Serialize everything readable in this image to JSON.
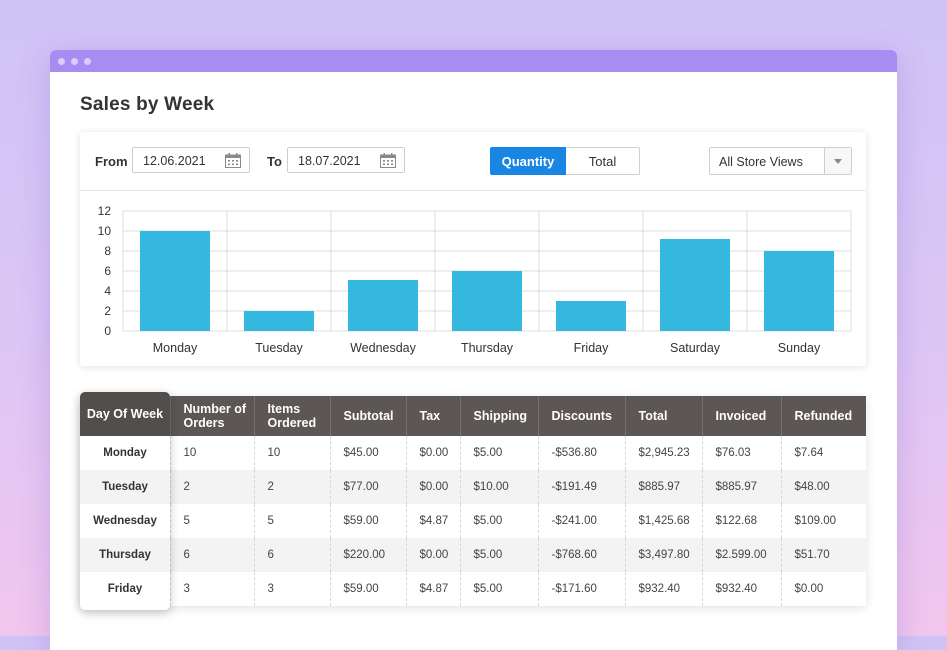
{
  "page": {
    "title": "Sales by Week"
  },
  "filters": {
    "from_label": "From",
    "from_value": "12.06.2021",
    "to_label": "To",
    "to_value": "18.07.2021",
    "toggle": {
      "active": "Quantity",
      "inactive": "Total"
    },
    "store_select": "All Store Views"
  },
  "chart_data": {
    "type": "bar",
    "categories": [
      "Monday",
      "Tuesday",
      "Wednesday",
      "Thursday",
      "Friday",
      "Saturday",
      "Sunday"
    ],
    "values": [
      10,
      2,
      5.1,
      6,
      3,
      9.2,
      8
    ],
    "yticks": [
      "0",
      "2",
      "4",
      "6",
      "8",
      "10",
      "12"
    ],
    "ylim": [
      0,
      12
    ],
    "grid": true,
    "color": "#35b8e0"
  },
  "table": {
    "day_header": "Day Of Week",
    "headers": [
      "Number of Orders",
      "Items Ordered",
      "Subtotal",
      "Tax",
      "Shipping",
      "Discounts",
      "Total",
      "Invoiced",
      "Refunded"
    ],
    "rows": [
      {
        "day": "Monday",
        "cells": [
          "10",
          "10",
          "$45.00",
          "$0.00",
          "$5.00",
          "-$536.80",
          "$2,945.23",
          "$76.03",
          "$7.64"
        ]
      },
      {
        "day": "Tuesday",
        "cells": [
          "2",
          "2",
          "$77.00",
          "$0.00",
          "$10.00",
          "-$191.49",
          "$885.97",
          "$885.97",
          "$48.00"
        ]
      },
      {
        "day": "Wednesday",
        "cells": [
          "5",
          "5",
          "$59.00",
          "$4.87",
          "$5.00",
          "-$241.00",
          "$1,425.68",
          "$122.68",
          "$109.00"
        ]
      },
      {
        "day": "Thursday",
        "cells": [
          "6",
          "6",
          "$220.00",
          "$0.00",
          "$5.00",
          "-$768.60",
          "$3,497.80",
          "$2.599.00",
          "$51.70"
        ]
      },
      {
        "day": "Friday",
        "cells": [
          "3",
          "3",
          "$59.00",
          "$4.87",
          "$5.00",
          "-$171.60",
          "$932.40",
          "$932.40",
          "$0.00"
        ]
      }
    ]
  },
  "colors": {
    "accent": "#1a86e3",
    "bar": "#35b8e0",
    "header": "#5c5754",
    "titlebar": "#a98cf2"
  },
  "icons": [
    "calendar-icon",
    "chevron-down-icon"
  ]
}
